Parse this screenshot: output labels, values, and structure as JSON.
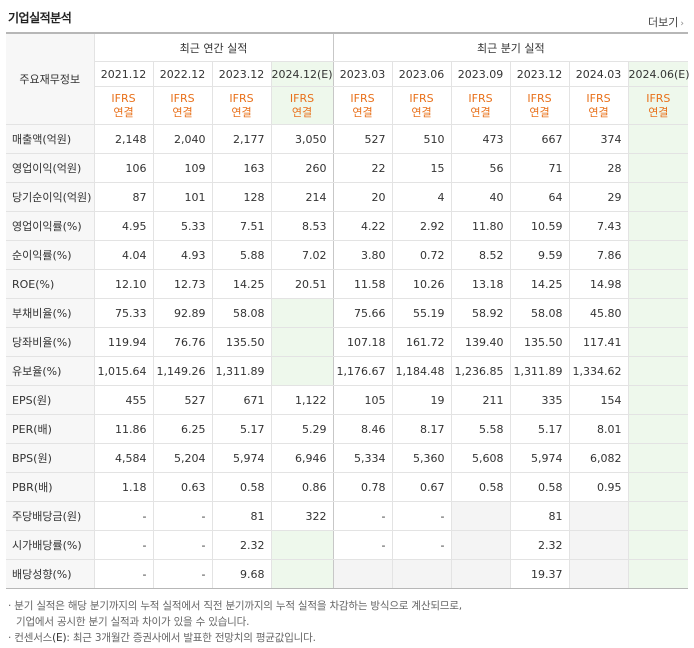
{
  "header": {
    "title": "기업실적분석",
    "more_label": "더보기"
  },
  "table": {
    "row_header_label": "주요재무정보",
    "groups": {
      "annual": "최근 연간 실적",
      "quarterly": "최근 분기 실적"
    },
    "periods": [
      "2021.12",
      "2022.12",
      "2023.12",
      "2024.12(E)",
      "2023.03",
      "2023.06",
      "2023.09",
      "2023.12",
      "2024.03",
      "2024.06(E)"
    ],
    "ifrs": {
      "line1": "IFRS",
      "line2": "연결"
    },
    "rows": [
      {
        "label": "매출액(억원)",
        "values": [
          "2,148",
          "2,040",
          "2,177",
          "3,050",
          "527",
          "510",
          "473",
          "667",
          "374",
          ""
        ]
      },
      {
        "label": "영업이익(억원)",
        "values": [
          "106",
          "109",
          "163",
          "260",
          "22",
          "15",
          "56",
          "71",
          "28",
          ""
        ]
      },
      {
        "label": "당기순이익(억원)",
        "values": [
          "87",
          "101",
          "128",
          "214",
          "20",
          "4",
          "40",
          "64",
          "29",
          ""
        ]
      },
      {
        "label": "영업이익률(%)",
        "values": [
          "4.95",
          "5.33",
          "7.51",
          "8.53",
          "4.22",
          "2.92",
          "11.80",
          "10.59",
          "7.43",
          ""
        ]
      },
      {
        "label": "순이익률(%)",
        "values": [
          "4.04",
          "4.93",
          "5.88",
          "7.02",
          "3.80",
          "0.72",
          "8.52",
          "9.59",
          "7.86",
          ""
        ]
      },
      {
        "label": "ROE(%)",
        "values": [
          "12.10",
          "12.73",
          "14.25",
          "20.51",
          "11.58",
          "10.26",
          "13.18",
          "14.25",
          "14.98",
          ""
        ]
      },
      {
        "label": "부채비율(%)",
        "values": [
          "75.33",
          "92.89",
          "58.08",
          "",
          "75.66",
          "55.19",
          "58.92",
          "58.08",
          "45.80",
          ""
        ]
      },
      {
        "label": "당좌비율(%)",
        "values": [
          "119.94",
          "76.76",
          "135.50",
          "",
          "107.18",
          "161.72",
          "139.40",
          "135.50",
          "117.41",
          ""
        ]
      },
      {
        "label": "유보율(%)",
        "values": [
          "1,015.64",
          "1,149.26",
          "1,311.89",
          "",
          "1,176.67",
          "1,184.48",
          "1,236.85",
          "1,311.89",
          "1,334.62",
          ""
        ]
      },
      {
        "label": "EPS(원)",
        "values": [
          "455",
          "527",
          "671",
          "1,122",
          "105",
          "19",
          "211",
          "335",
          "154",
          ""
        ]
      },
      {
        "label": "PER(배)",
        "values": [
          "11.86",
          "6.25",
          "5.17",
          "5.29",
          "8.46",
          "8.17",
          "5.58",
          "5.17",
          "8.01",
          ""
        ]
      },
      {
        "label": "BPS(원)",
        "values": [
          "4,584",
          "5,204",
          "5,974",
          "6,946",
          "5,334",
          "5,360",
          "5,608",
          "5,974",
          "6,082",
          ""
        ]
      },
      {
        "label": "PBR(배)",
        "values": [
          "1.18",
          "0.63",
          "0.58",
          "0.86",
          "0.78",
          "0.67",
          "0.58",
          "0.58",
          "0.95",
          ""
        ]
      },
      {
        "label": "주당배당금(원)",
        "values": [
          "-",
          "-",
          "81",
          "322",
          "-",
          "-",
          "",
          "81",
          "",
          ""
        ]
      },
      {
        "label": "시가배당률(%)",
        "values": [
          "-",
          "-",
          "2.32",
          "",
          "-",
          "-",
          "",
          "2.32",
          "",
          ""
        ]
      },
      {
        "label": "배당성향(%)",
        "values": [
          "-",
          "-",
          "9.68",
          "",
          "",
          "",
          "",
          "19.37",
          "",
          ""
        ]
      }
    ]
  },
  "notes": {
    "line1": "· 분기 실적은 해당 분기까지의 누적 실적에서 직전 분기까지의 누적 실적을 차감하는 방식으로 계산되므로,",
    "line2": "기업에서 공시한 분기 실적과 차이가 있을 수 있습니다.",
    "line3_prefix": "· 컨센서스",
    "line3_e": "(E)",
    "line3_suffix": ": 최근 3개월간 증권사에서 발표한 전망치의 평균값입니다."
  },
  "colors": {
    "ifrs": "#e8701a",
    "estimate_bg": "#eef8ec",
    "empty_bg": "#f4f4f4"
  }
}
